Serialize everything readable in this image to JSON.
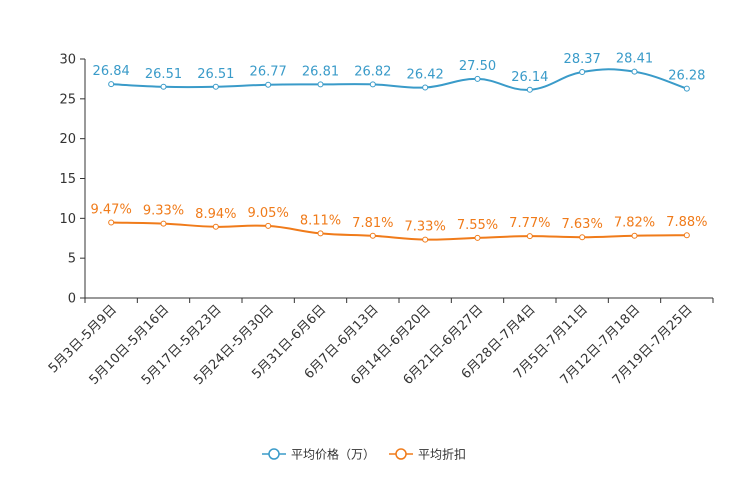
{
  "chart_data": {
    "type": "line",
    "title": "",
    "xlabel": "",
    "ylabel": "",
    "ylim": [
      0,
      30
    ],
    "yticks": [
      0,
      5,
      10,
      15,
      20,
      25,
      30
    ],
    "grid": false,
    "legend_position": "bottom",
    "categories": [
      "5月3日-5月9日",
      "5月10日-5月16日",
      "5月17日-5月23日",
      "5月24日-5月30日",
      "5月31日-6月6日",
      "6月7日-6月13日",
      "6月14日-6月20日",
      "6月21日-6月27日",
      "6月28日-7月4日",
      "7月5日-7月11日",
      "7月12日-7月18日",
      "7月19日-7月25日"
    ],
    "series": [
      {
        "name": "平均价格（万）",
        "color": "#3a9bc9",
        "values": [
          26.84,
          26.51,
          26.51,
          26.77,
          26.81,
          26.82,
          26.42,
          27.5,
          26.14,
          28.37,
          28.41,
          26.28
        ],
        "labels": [
          "26.84",
          "26.51",
          "26.51",
          "26.77",
          "26.81",
          "26.82",
          "26.42",
          "27.50",
          "26.14",
          "28.37",
          "28.41",
          "26.28"
        ]
      },
      {
        "name": "平均折扣",
        "color": "#f07b1a",
        "values": [
          9.47,
          9.33,
          8.94,
          9.05,
          8.11,
          7.81,
          7.33,
          7.55,
          7.77,
          7.63,
          7.82,
          7.88
        ],
        "labels": [
          "9.47%",
          "9.33%",
          "8.94%",
          "9.05%",
          "8.11%",
          "7.81%",
          "7.33%",
          "7.55%",
          "7.77%",
          "7.63%",
          "7.82%",
          "7.88%"
        ]
      }
    ]
  }
}
